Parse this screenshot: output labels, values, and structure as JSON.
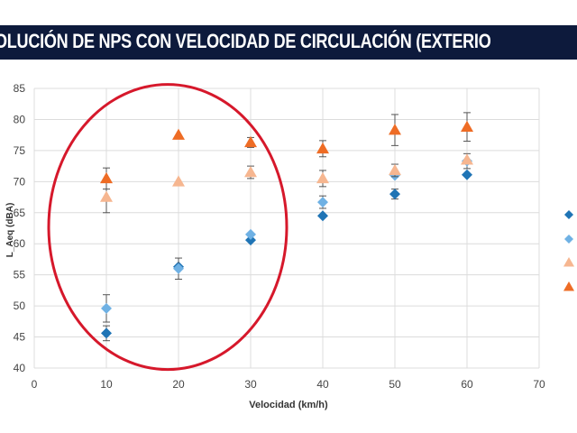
{
  "banner": {
    "title": "OLUCIÓN DE NPS CON VELOCIDAD DE CIRCULACIÓN (EXTERIO"
  },
  "colors": {
    "banner_bg": "#0d1a3c",
    "grid": "#dcdcdc",
    "highlight_ellipse": "#d6182b",
    "series_dark_blue": "#1f74b5",
    "series_light_blue": "#6fb1e4",
    "series_light_orange": "#f6b690",
    "series_dark_orange": "#ee6c25"
  },
  "chart_data": {
    "type": "scatter",
    "title": "",
    "xlabel": "Velocidad (km/h)",
    "ylabel": "L_Aeq (dBA)",
    "xlim": [
      0,
      70
    ],
    "ylim": [
      40,
      85
    ],
    "xticks": [
      0,
      10,
      20,
      30,
      40,
      50,
      60,
      70
    ],
    "yticks": [
      40,
      45,
      50,
      55,
      60,
      65,
      70,
      75,
      80,
      85
    ],
    "grid": true,
    "legend_position": "right (partially cropped)",
    "series": [
      {
        "legend_label": "",
        "marker": "diamond",
        "color": "#1f74b5",
        "points": [
          {
            "x": 10,
            "y": 45.6,
            "err": 1.2
          },
          {
            "x": 20,
            "y": 56.3,
            "err": 0
          },
          {
            "x": 30,
            "y": 60.6,
            "err": 0
          },
          {
            "x": 40,
            "y": 64.5,
            "err": 0
          },
          {
            "x": 50,
            "y": 68.0,
            "err": 0.8
          },
          {
            "x": 60,
            "y": 71.1,
            "err": 0
          }
        ]
      },
      {
        "legend_label": "",
        "marker": "diamond",
        "color": "#6fb1e4",
        "points": [
          {
            "x": 10,
            "y": 49.6,
            "err": 2.2
          },
          {
            "x": 20,
            "y": 56.0,
            "err": 1.7
          },
          {
            "x": 30,
            "y": 61.5,
            "err": 0
          },
          {
            "x": 40,
            "y": 66.7,
            "err": 1.0
          },
          {
            "x": 50,
            "y": 71.0,
            "err": 0
          },
          {
            "x": 60,
            "y": 73.3,
            "err": 1.2
          }
        ]
      },
      {
        "legend_label": "",
        "marker": "triangle",
        "color": "#f6b690",
        "points": [
          {
            "x": 10,
            "y": 67.5,
            "err": 2.5
          },
          {
            "x": 20,
            "y": 70.0,
            "err": 0
          },
          {
            "x": 30,
            "y": 71.5,
            "err": 1.0
          },
          {
            "x": 40,
            "y": 70.5,
            "err": 1.3
          },
          {
            "x": 50,
            "y": 71.8,
            "err": 1.0
          },
          {
            "x": 60,
            "y": 73.5,
            "err": 0
          }
        ]
      },
      {
        "legend_label": "",
        "marker": "triangle",
        "color": "#ee6c25",
        "points": [
          {
            "x": 10,
            "y": 70.5,
            "err": 1.7
          },
          {
            "x": 20,
            "y": 77.5,
            "err": 0
          },
          {
            "x": 30,
            "y": 76.3,
            "err": 0.8
          },
          {
            "x": 40,
            "y": 75.3,
            "err": 1.3
          },
          {
            "x": 50,
            "y": 78.3,
            "err": 2.5
          },
          {
            "x": 60,
            "y": 78.8,
            "err": 2.3
          }
        ]
      }
    ],
    "annotation": {
      "shape": "ellipse",
      "color": "#d6182b",
      "highlights": "x from 10 to 30"
    }
  }
}
